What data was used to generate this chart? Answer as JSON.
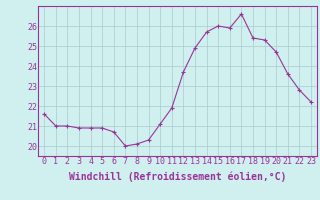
{
  "x": [
    0,
    1,
    2,
    3,
    4,
    5,
    6,
    7,
    8,
    9,
    10,
    11,
    12,
    13,
    14,
    15,
    16,
    17,
    18,
    19,
    20,
    21,
    22,
    23
  ],
  "y": [
    21.6,
    21.0,
    21.0,
    20.9,
    20.9,
    20.9,
    20.7,
    20.0,
    20.1,
    20.3,
    21.1,
    21.9,
    23.7,
    24.9,
    25.7,
    26.0,
    25.9,
    26.6,
    25.4,
    25.3,
    24.7,
    23.6,
    22.8,
    22.2
  ],
  "line_color": "#993399",
  "marker": "+",
  "marker_size": 3,
  "linewidth": 0.8,
  "bg_color": "#cff0ee",
  "grid_color": "#aacccc",
  "xlabel": "Windchill (Refroidissement éolien,°C)",
  "ylabel": "",
  "ylim": [
    19.5,
    27.0
  ],
  "yticks": [
    20,
    21,
    22,
    23,
    24,
    25,
    26
  ],
  "xticks": [
    0,
    1,
    2,
    3,
    4,
    5,
    6,
    7,
    8,
    9,
    10,
    11,
    12,
    13,
    14,
    15,
    16,
    17,
    18,
    19,
    20,
    21,
    22,
    23
  ],
  "tick_fontsize": 6,
  "xlabel_fontsize": 7,
  "tick_color": "#993399",
  "label_color": "#993399",
  "spine_color": "#993399"
}
